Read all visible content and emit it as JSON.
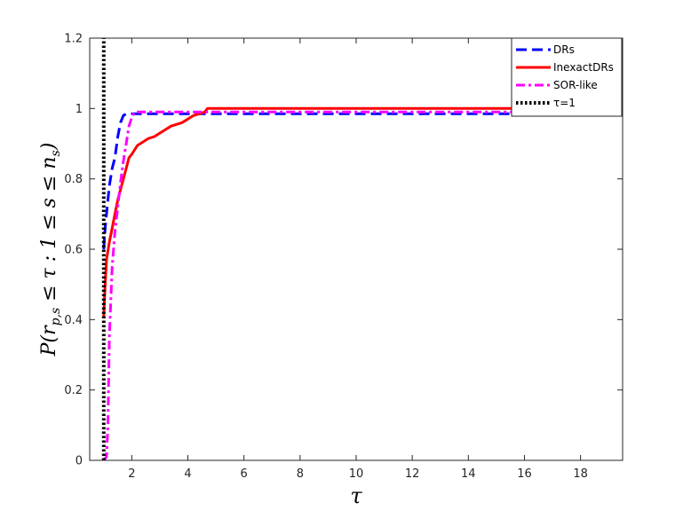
{
  "chart_data": {
    "type": "line",
    "xlabel": "τ",
    "ylabel": "P(r_{p,s} ≤ τ : 1 ≤ s ≤ n_s)",
    "ylabel_display": {
      "prefix": "P(r",
      "sub": "p,s",
      "mid": " ≤ τ : 1 ≤ s ≤ n",
      "sub2": "s",
      "suffix": ")"
    },
    "xlim": [
      0.5,
      19.5
    ],
    "ylim": [
      0,
      1.2
    ],
    "xticks": [
      "2",
      "4",
      "6",
      "8",
      "10",
      "12",
      "14",
      "16",
      "18"
    ],
    "yticks": [
      "0",
      "0.2",
      "0.4",
      "0.6",
      "0.8",
      "1",
      "1.2"
    ],
    "grid": false,
    "legend_position": "top-right",
    "series": [
      {
        "name": "DRs",
        "color": "#0000ff",
        "dash": "dashed",
        "x": [
          1.0,
          1.05,
          1.1,
          1.15,
          1.2,
          1.3,
          1.4,
          1.5,
          1.6,
          1.7,
          1.8,
          2.0,
          3.0,
          5.0,
          10.0,
          19.4
        ],
        "y": [
          0.6,
          0.66,
          0.7,
          0.74,
          0.78,
          0.83,
          0.86,
          0.92,
          0.96,
          0.98,
          0.985,
          0.985,
          0.985,
          0.985,
          0.985,
          0.985
        ]
      },
      {
        "name": "InexactDRs",
        "color": "#ff0000",
        "dash": "solid",
        "x": [
          1.0,
          1.05,
          1.1,
          1.2,
          1.3,
          1.4,
          1.5,
          1.6,
          1.7,
          1.8,
          1.9,
          2.0,
          2.2,
          2.4,
          2.6,
          2.8,
          3.0,
          3.2,
          3.4,
          3.6,
          3.8,
          4.0,
          4.2,
          4.4,
          4.6,
          4.7,
          5.0,
          10.0,
          19.4
        ],
        "y": [
          0.41,
          0.5,
          0.57,
          0.62,
          0.66,
          0.7,
          0.74,
          0.77,
          0.8,
          0.83,
          0.86,
          0.87,
          0.895,
          0.905,
          0.915,
          0.92,
          0.93,
          0.94,
          0.95,
          0.955,
          0.96,
          0.97,
          0.98,
          0.985,
          0.99,
          1.0,
          1.0,
          1.0,
          1.0
        ]
      },
      {
        "name": "SOR-like",
        "color": "#ff00ff",
        "dash": "dashdot",
        "x": [
          1.0,
          1.1,
          1.15,
          1.2,
          1.3,
          1.4,
          1.5,
          1.6,
          1.7,
          1.8,
          1.9,
          2.0,
          2.1,
          3.0,
          5.0,
          10.0,
          19.4
        ],
        "y": [
          0.0,
          0.01,
          0.1,
          0.35,
          0.55,
          0.65,
          0.72,
          0.79,
          0.85,
          0.9,
          0.95,
          0.975,
          0.99,
          0.99,
          0.99,
          0.99,
          0.99
        ]
      },
      {
        "name": "τ=1",
        "color": "#000000",
        "dash": "dotted",
        "x": [
          1.0,
          1.0
        ],
        "y": [
          0.0,
          1.2
        ]
      }
    ]
  }
}
